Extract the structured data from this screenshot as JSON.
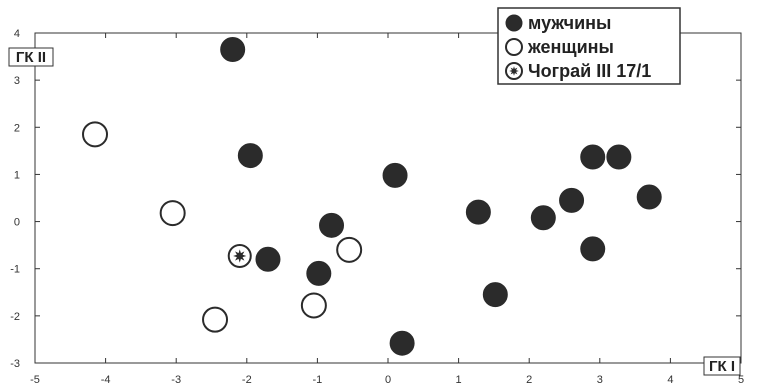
{
  "chart_data": {
    "type": "scatter",
    "xlabel": "ГК I",
    "ylabel": "ГК II",
    "xlim": [
      -5,
      5
    ],
    "ylim": [
      -3,
      4
    ],
    "x_ticks": [
      -5,
      -4,
      -3,
      -2,
      -1,
      0,
      1,
      2,
      3,
      4,
      5
    ],
    "y_ticks": [
      -3,
      -2,
      -1,
      0,
      1,
      2,
      3,
      4
    ],
    "grid": false,
    "legend_position": "top-right",
    "colors": {
      "male": "#2b2b2b",
      "female": "#ffffff",
      "stroke": "#2b2b2b"
    },
    "series": [
      {
        "name": "мужчины",
        "marker": "filled-circle",
        "points": [
          {
            "x": -2.2,
            "y": 3.65
          },
          {
            "x": -1.95,
            "y": 1.4
          },
          {
            "x": -0.8,
            "y": -0.08
          },
          {
            "x": -1.7,
            "y": -0.8
          },
          {
            "x": -0.98,
            "y": -1.1
          },
          {
            "x": 0.1,
            "y": 0.98
          },
          {
            "x": 0.2,
            "y": -2.58
          },
          {
            "x": 1.28,
            "y": 0.2
          },
          {
            "x": 1.52,
            "y": -1.55
          },
          {
            "x": 2.2,
            "y": 0.08
          },
          {
            "x": 2.6,
            "y": 0.45
          },
          {
            "x": 2.9,
            "y": 1.37
          },
          {
            "x": 3.27,
            "y": 1.37
          },
          {
            "x": 3.7,
            "y": 0.52
          },
          {
            "x": 2.9,
            "y": -0.58
          }
        ]
      },
      {
        "name": "женщины",
        "marker": "open-circle",
        "points": [
          {
            "x": -4.15,
            "y": 1.85
          },
          {
            "x": -3.05,
            "y": 0.18
          },
          {
            "x": -2.45,
            "y": -2.08
          },
          {
            "x": -1.05,
            "y": -1.78
          },
          {
            "x": -0.55,
            "y": -0.6
          }
        ]
      },
      {
        "name": "Чограй III 17/1",
        "marker": "star-circle",
        "points": [
          {
            "x": -2.1,
            "y": -0.73
          }
        ]
      }
    ]
  }
}
